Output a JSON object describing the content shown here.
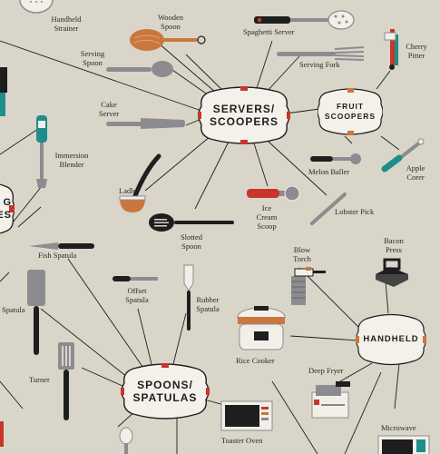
{
  "hubs": {
    "servers": {
      "line1": "SERVERS/",
      "line2": "SCOOPERS"
    },
    "fruit": {
      "line1": "FRUIT",
      "line2": "SCOOPERS"
    },
    "spoons": {
      "line1": "SPOONS/",
      "line2": "SPATULAS"
    },
    "handheld": {
      "line1": "HANDHELD"
    },
    "left_partial": {
      "line1": "G",
      "line2": "ES"
    }
  },
  "labels": {
    "handheld_strainer": "Handheld Strainer",
    "wooden_spoon": "Wooden Spoon",
    "spaghetti_server": "Spaghetti Server",
    "cherry_pitter": "Cherry Pitter",
    "serving_spoon": "Serving Spoon",
    "serving_fork": "Serving Fork",
    "cake_server": "Cake Server",
    "immersion_blender": "Immersion Blender",
    "melon_baller": "Melon Baller",
    "apple_corer": "Apple Corer",
    "ladle": "Ladle",
    "ice_cream_scoop": "Ice Cream Scoop",
    "lobster_pick": "Lobster Pick",
    "slotted_spoon": "Slotted Spoon",
    "bacon_press": "Bacon Press",
    "blow_torch": "Blow Torch",
    "fish_spatula": "Fish Spatula",
    "offset_spatula": "Offset Spatula",
    "rubber_spatula": "Rubber Spatula",
    "spatula": "Spatula",
    "rice_cooker": "Rice Cooker",
    "deep_fryer": "Deep Fryer",
    "turner": "Turner",
    "toaster_oven": "Toaster Oven",
    "microwave": "Microwave"
  },
  "colors": {
    "background": "#d9d5c9",
    "hub_fill": "#f3f1ea",
    "accent_red": "#c8362b",
    "accent_teal": "#1f8d8a",
    "accent_orange": "#c9773e",
    "utensil_gray": "#8c8c90",
    "dark": "#1e1e1e"
  },
  "icons": [
    "strainer-icon",
    "wooden-spoon-icon",
    "spaghetti-server-icon",
    "cherry-pitter-icon",
    "serving-spoon-icon",
    "serving-fork-icon",
    "cake-server-icon",
    "immersion-blender-icon",
    "melon-baller-icon",
    "apple-corer-icon",
    "ladle-icon",
    "ice-cream-scoop-icon",
    "lobster-pick-icon",
    "slotted-spoon-icon",
    "bacon-press-icon",
    "blow-torch-icon",
    "fish-spatula-icon",
    "offset-spatula-icon",
    "rubber-spatula-icon",
    "spatula-icon",
    "rice-cooker-icon",
    "deep-fryer-icon",
    "turner-icon",
    "toaster-oven-icon",
    "microwave-icon"
  ]
}
